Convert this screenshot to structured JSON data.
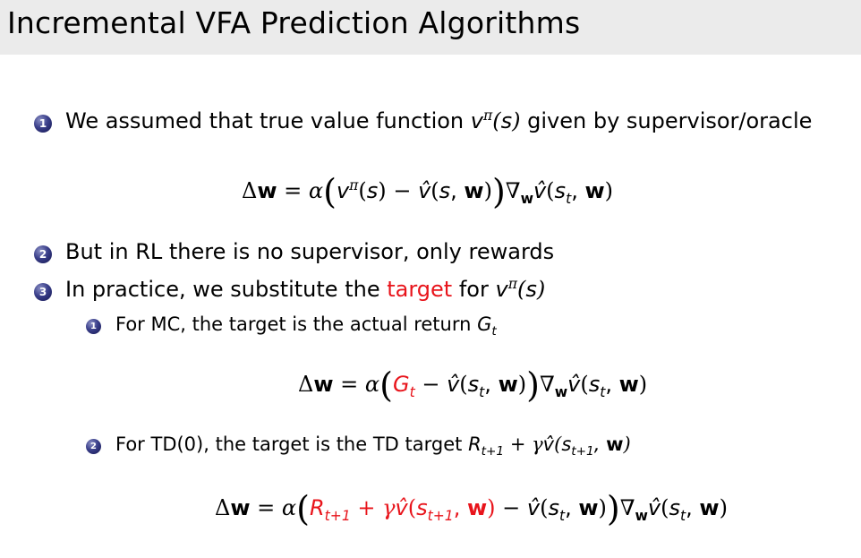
{
  "title": "Incremental VFA Prediction Algorithms",
  "items": [
    {
      "num": "1",
      "text_a": "We assumed that true value function",
      "text_b": "given by supervisor/oracle"
    },
    {
      "num": "2",
      "text": "But in RL there is no supervisor, only rewards"
    },
    {
      "num": "3",
      "text_a": "In practice, we substitute the",
      "highlight": "target",
      "text_b": "for"
    }
  ],
  "subitems": [
    {
      "num": "1",
      "text": "For MC, the target is the actual return"
    },
    {
      "num": "2",
      "text": "For TD(0), the target is the TD target"
    }
  ],
  "colors": {
    "highlight": "#e8141b",
    "bullet": "#1f2268",
    "title_bg": "#ebebeb"
  }
}
